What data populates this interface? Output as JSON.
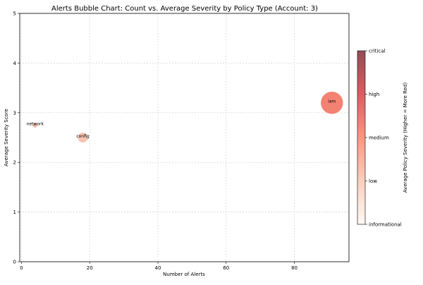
{
  "chart_data": {
    "type": "scatter",
    "title": "Alerts Bubble Chart: Count vs. Average Severity by Policy Type (Account: 3)",
    "xlabel": "Number of Alerts",
    "ylabel": "Average Severity Score",
    "xlim": [
      -0.5,
      96
    ],
    "ylim": [
      0,
      5
    ],
    "xticks": [
      "0",
      "20",
      "40",
      "60",
      "80"
    ],
    "yticks": [
      "0",
      "1",
      "2",
      "3",
      "4",
      "5"
    ],
    "grid": true,
    "points": [
      {
        "label": "network",
        "x": 4,
        "y": 2.75,
        "size": 4,
        "severity": 2.75,
        "color": "#f8a890"
      },
      {
        "label": "config",
        "x": 18,
        "y": 2.5,
        "size": 18,
        "severity": 2.5,
        "color": "#f9b8a3"
      },
      {
        "label": "iam",
        "x": 91,
        "y": 3.2,
        "size": 91,
        "severity": 3.2,
        "color": "#f26c5a"
      }
    ],
    "colorbar": {
      "label": "Average Policy Severity (Higher = More Red)",
      "ticks": [
        "informational",
        "low",
        "medium",
        "high",
        "critical"
      ],
      "range": [
        0,
        4
      ],
      "colormap": "Reds",
      "alpha": 0.7
    }
  }
}
